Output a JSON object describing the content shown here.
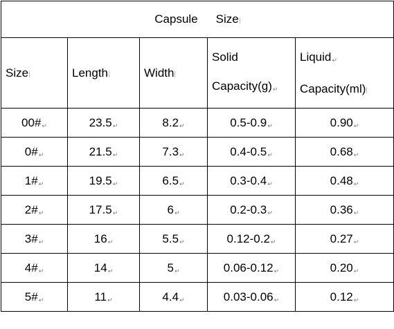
{
  "title": {
    "word1": "Capsule",
    "word2": "Size"
  },
  "headers": {
    "size": "Size",
    "length": "Length",
    "width": "Width",
    "solid_top": "Solid",
    "solid_bottom": "Capacity(g)",
    "liquid_top": "Liquid",
    "liquid_bottom": "Capacity(ml)"
  },
  "rows": [
    {
      "size": "00#",
      "length": "23.5",
      "width": "8.2",
      "solid": "0.5-0.9",
      "liquid": "0.90"
    },
    {
      "size": "0#",
      "length": "21.5",
      "width": "7.3",
      "solid": "0.4-0.5",
      "liquid": "0.68"
    },
    {
      "size": "1#",
      "length": "19.5",
      "width": "6.5",
      "solid": "0.3-0.4",
      "liquid": "0.48"
    },
    {
      "size": "2#",
      "length": "17.5",
      "width": "6",
      "solid": "0.2-0.3",
      "liquid": "0.36"
    },
    {
      "size": "3#",
      "length": "16",
      "width": "5.5",
      "solid": "0.12-0.2",
      "liquid": "0.27"
    },
    {
      "size": "4#",
      "length": "14",
      "width": "5",
      "solid": "0.06-0.12",
      "liquid": "0.20"
    },
    {
      "size": "5#",
      "length": "11",
      "width": "4.4",
      "solid": "0.03-0.06",
      "liquid": "0.12"
    }
  ],
  "marks": {
    "return_mark": "↵",
    "return_mark_icon": "paragraph-return-icon"
  }
}
